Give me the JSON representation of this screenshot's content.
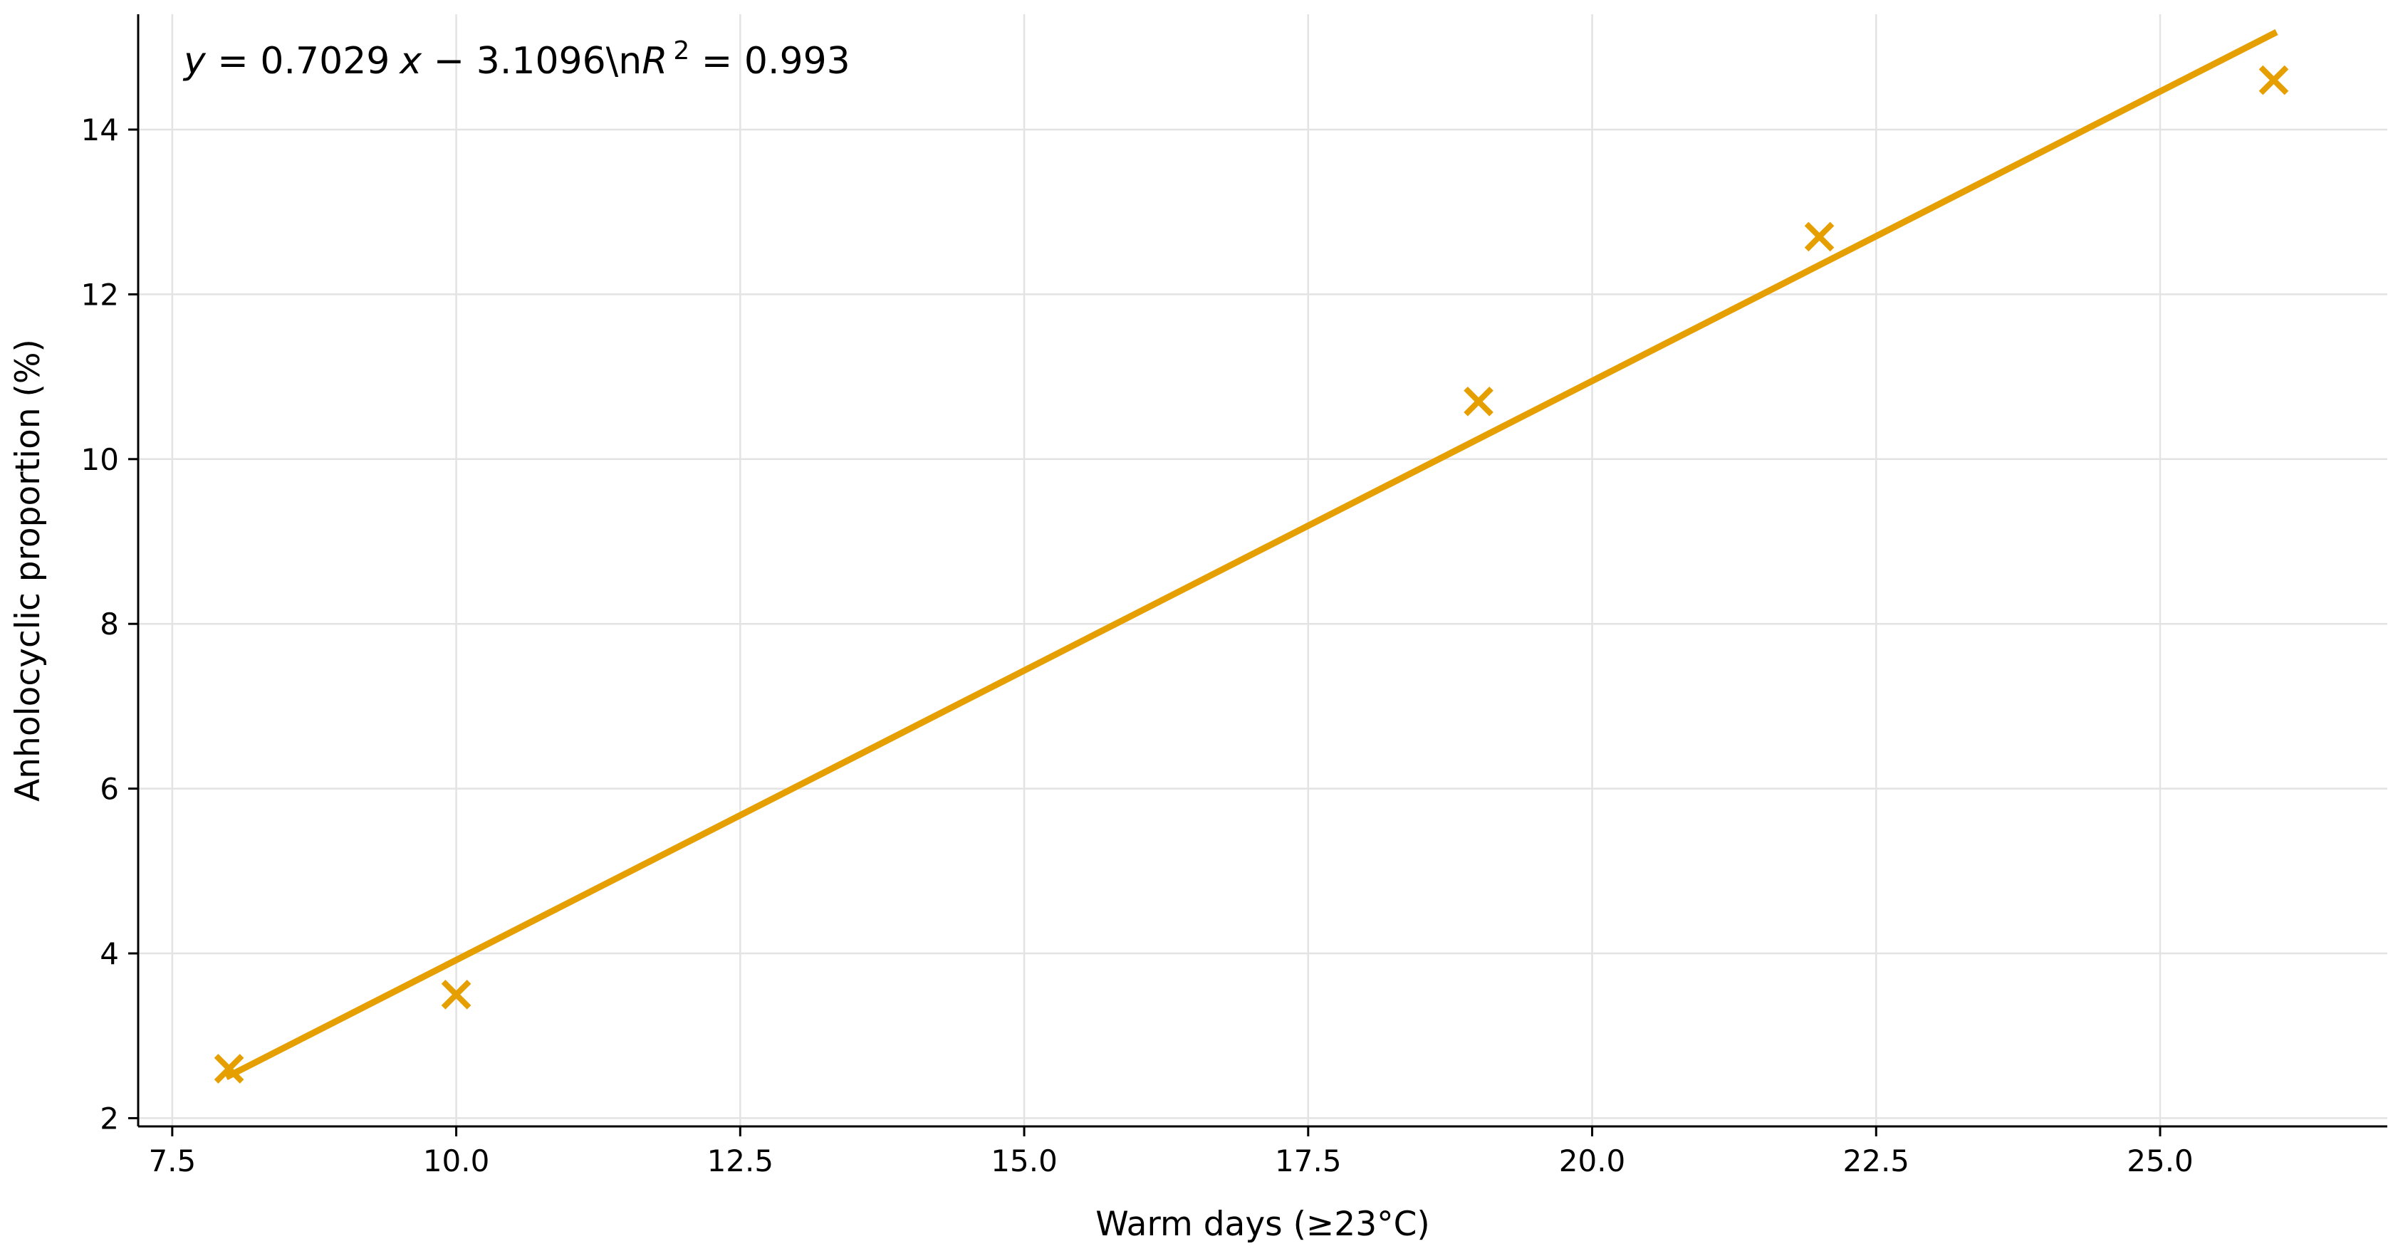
{
  "chart_data": {
    "type": "scatter",
    "xlabel": "Warm days (≥23°C)",
    "ylabel": "Anholocyclic proportion (%)",
    "xlim": [
      7.2,
      27.0
    ],
    "ylim": [
      1.9,
      15.4
    ],
    "xticks": [
      7.5,
      10.0,
      12.5,
      15.0,
      17.5,
      20.0,
      22.5,
      25.0
    ],
    "xtick_labels": [
      "7.5",
      "10.0",
      "12.5",
      "15.0",
      "17.5",
      "20.0",
      "22.5",
      "25.0"
    ],
    "yticks": [
      2,
      4,
      6,
      8,
      10,
      12,
      14
    ],
    "ytick_labels": [
      "2",
      "4",
      "6",
      "8",
      "10",
      "12",
      "14"
    ],
    "grid": true,
    "color": "#E69F00",
    "marker": "x",
    "series": [
      {
        "x": [
          8,
          10,
          19,
          22,
          26
        ],
        "y": [
          2.6,
          3.5,
          10.7,
          12.7,
          14.6
        ]
      }
    ],
    "fit_line": {
      "slope": 0.7029,
      "intercept": -3.1096,
      "x_range": [
        8,
        26
      ]
    },
    "annotation": {
      "y_var": "y",
      "equals_1": " = 0.7029",
      "x_var": "x",
      "minus_part": " − 3.1096\\n",
      "r_var": "R",
      "r_sup": "2",
      "equals_2": " = 0.993"
    }
  }
}
